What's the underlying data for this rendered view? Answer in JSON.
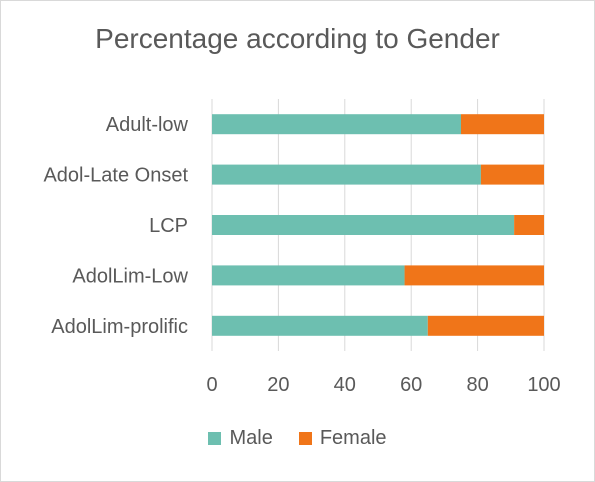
{
  "chart_data": {
    "type": "bar",
    "orientation": "horizontal",
    "stacked": true,
    "title": "Percentage according to Gender",
    "categories": [
      "Adult-low",
      "Adol-Late Onset",
      "LCP",
      "AdolLim-Low",
      "AdolLim-prolific"
    ],
    "series": [
      {
        "name": "Male",
        "values": [
          75,
          81,
          91,
          58,
          65
        ],
        "color": "#6dbfb0"
      },
      {
        "name": "Female",
        "values": [
          25,
          19,
          9,
          42,
          35
        ],
        "color": "#f07519"
      }
    ],
    "xlim": [
      0,
      100
    ],
    "x_ticks": [
      0,
      20,
      40,
      60,
      80,
      100
    ],
    "grid": true,
    "legend_position": "bottom"
  }
}
